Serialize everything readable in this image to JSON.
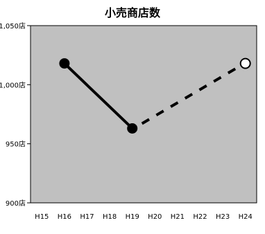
{
  "chart_data": {
    "type": "line",
    "title": "小売商店数",
    "xlabel": "",
    "ylabel": "",
    "categories": [
      "H15",
      "H16",
      "H17",
      "H18",
      "H19",
      "H20",
      "H21",
      "H22",
      "H23",
      "H24"
    ],
    "ylim": [
      900,
      1050
    ],
    "yticks": [
      900,
      950,
      1000,
      1050
    ],
    "y_tick_labels": [
      "900店",
      "950店",
      "1,000店",
      "1,050店"
    ],
    "grid": false,
    "legend": "none",
    "plot_background": "#c0c0c0",
    "series": [
      {
        "style": "solid",
        "marker": "filled-circle",
        "points": [
          {
            "x": "H16",
            "y": 1018
          },
          {
            "x": "H19",
            "y": 963
          }
        ]
      },
      {
        "style": "dashed",
        "marker": "none-start-open-end",
        "points": [
          {
            "x": "H19",
            "y": 963
          },
          {
            "x": "H24",
            "y": 1018
          }
        ]
      }
    ]
  }
}
